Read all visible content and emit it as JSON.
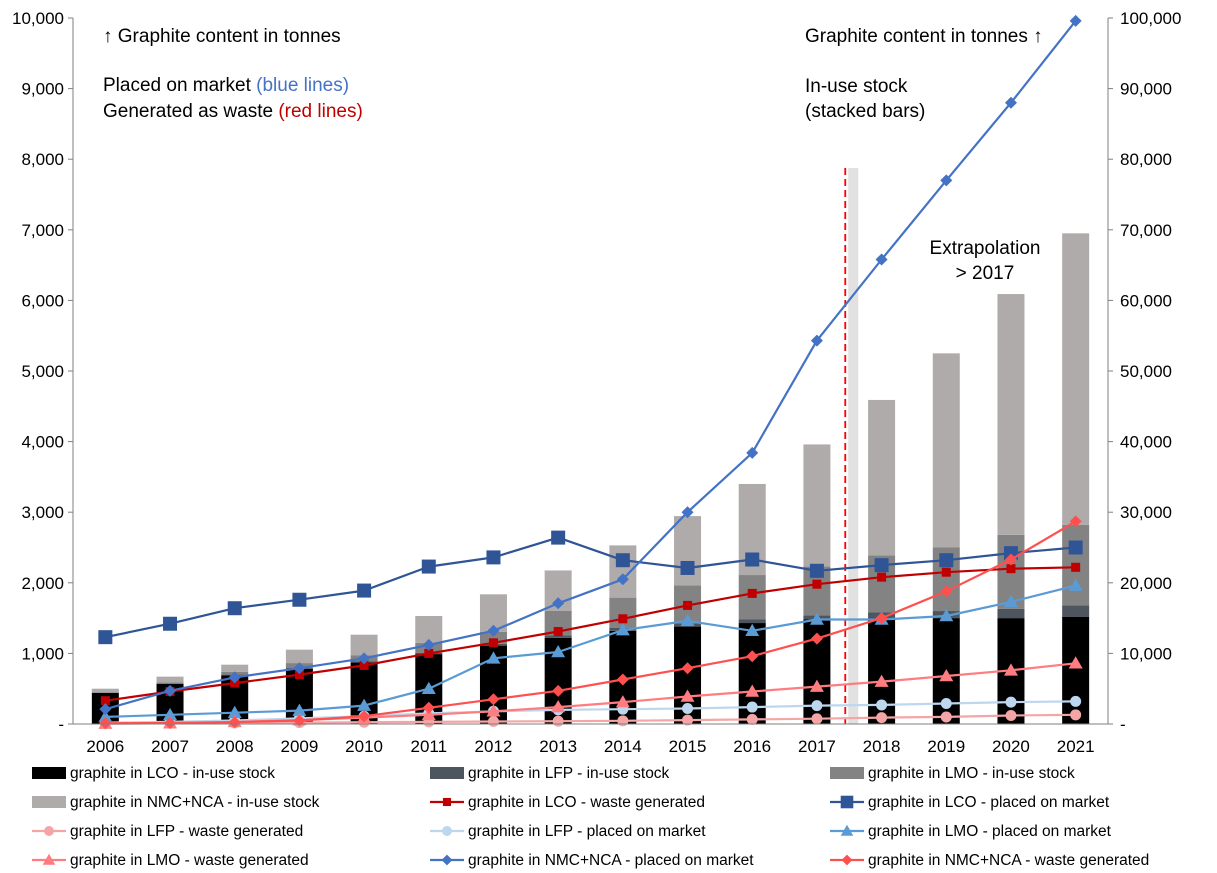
{
  "chart_data": {
    "type": "bar",
    "categories": [
      "2006",
      "2007",
      "2008",
      "2009",
      "2010",
      "2011",
      "2012",
      "2013",
      "2014",
      "2015",
      "2016",
      "2017",
      "2018",
      "2019",
      "2020",
      "2021"
    ],
    "left_axis": {
      "ylim": [
        0,
        10000
      ],
      "ticks": [
        0,
        1000,
        2000,
        3000,
        4000,
        5000,
        6000,
        7000,
        8000,
        9000,
        10000
      ],
      "tick_labels": [
        "-",
        "1,000",
        "2,000",
        "3,000",
        "4,000",
        "5,000",
        "6,000",
        "7,000",
        "8,000",
        "9,000",
        "10,000"
      ]
    },
    "right_axis": {
      "ylim": [
        0,
        100000
      ],
      "ticks": [
        0,
        10000,
        20000,
        30000,
        40000,
        50000,
        60000,
        70000,
        80000,
        90000,
        100000
      ],
      "tick_labels": [
        "-",
        "10,000",
        "20,000",
        "30,000",
        "40,000",
        "50,000",
        "60,000",
        "70,000",
        "80,000",
        "90,000",
        "100,000"
      ]
    },
    "grid": false,
    "legend_position": "bottom",
    "annotations": {
      "left_unit": "↑ Graphite content in tonnes",
      "placed_prefix": "Placed on market ",
      "placed_suffix": "(blue lines)",
      "waste_prefix": "Generated as waste ",
      "waste_suffix": "(red lines)",
      "right_unit": "Graphite content in tonnes ↑",
      "stock_line1": "In-use stock",
      "stock_line2": "(stacked bars)",
      "extrap_line1": "Extrapolation",
      "extrap_line2": "> 2017",
      "extrapolation_after": "2017"
    },
    "stacked_bars": [
      {
        "name": "graphite in LCO - in-use stock",
        "color": "#000000",
        "values": [
          4400,
          5700,
          6900,
          7800,
          8700,
          9900,
          11100,
          12200,
          13200,
          13800,
          14300,
          14800,
          15000,
          15000,
          15000,
          15200
        ]
      },
      {
        "name": "graphite in LFP - in-use stock",
        "color": "#4d555f",
        "values": [
          50,
          60,
          100,
          130,
          150,
          200,
          270,
          350,
          400,
          450,
          500,
          600,
          800,
          1000,
          1300,
          1600
        ]
      },
      {
        "name": "graphite in LMO - in-use stock",
        "color": "#838383",
        "values": [
          50,
          150,
          400,
          700,
          900,
          1400,
          1700,
          3500,
          4300,
          5400,
          6300,
          6900,
          8100,
          9000,
          10500,
          11400
        ]
      },
      {
        "name": "graphite in NMC+NCA - in-use stock",
        "color": "#b0abab",
        "values": [
          500,
          800,
          1000,
          1900,
          2900,
          3800,
          5300,
          5700,
          7400,
          9800,
          12900,
          17300,
          22000,
          27500,
          34100,
          41300
        ]
      }
    ],
    "lines": [
      {
        "name": "graphite in LCO - waste generated",
        "color": "#c00000",
        "marker": "square-small",
        "axis": "left",
        "values": [
          330,
          460,
          580,
          700,
          830,
          1000,
          1150,
          1310,
          1490,
          1680,
          1850,
          1980,
          2080,
          2150,
          2200,
          2220
        ]
      },
      {
        "name": "graphite in LCO - placed on market",
        "color": "#2f5597",
        "marker": "square",
        "axis": "left",
        "values": [
          1230,
          1420,
          1640,
          1760,
          1890,
          2230,
          2360,
          2640,
          2320,
          2210,
          2330,
          2170,
          2250,
          2320,
          2420,
          2500
        ]
      },
      {
        "name": "graphite in LFP - waste generated",
        "color": "#f4a6a6",
        "marker": "circle",
        "axis": "left",
        "values": [
          5,
          10,
          15,
          20,
          25,
          30,
          35,
          40,
          45,
          55,
          65,
          75,
          90,
          100,
          120,
          130
        ]
      },
      {
        "name": "graphite in LFP - placed on market",
        "color": "#bdd7ee",
        "marker": "circle",
        "axis": "left",
        "values": [
          20,
          30,
          50,
          80,
          110,
          150,
          180,
          200,
          210,
          220,
          240,
          260,
          270,
          290,
          310,
          320
        ]
      },
      {
        "name": "graphite in LMO - placed on market",
        "color": "#5b9bd5",
        "marker": "triangle",
        "axis": "left",
        "values": [
          100,
          130,
          160,
          190,
          260,
          500,
          930,
          1020,
          1330,
          1460,
          1320,
          1480,
          1480,
          1530,
          1730,
          1960
        ]
      },
      {
        "name": "graphite in LMO - waste generated",
        "color": "#ff7c80",
        "marker": "triangle",
        "axis": "left",
        "values": [
          5,
          10,
          30,
          55,
          90,
          130,
          180,
          240,
          310,
          390,
          460,
          530,
          600,
          680,
          760,
          860
        ]
      },
      {
        "name": "graphite in NMC+NCA - placed on market",
        "color": "#4472c4",
        "marker": "diamond",
        "axis": "left",
        "values": [
          210,
          470,
          660,
          790,
          930,
          1120,
          1320,
          1710,
          2050,
          3000,
          3840,
          5430,
          6580,
          7700,
          8800,
          9960
        ]
      },
      {
        "name": "graphite in NMC+NCA - waste generated",
        "color": "#ff5050",
        "marker": "diamond",
        "axis": "left",
        "values": [
          10,
          15,
          25,
          50,
          110,
          230,
          350,
          470,
          630,
          790,
          960,
          1210,
          1500,
          1880,
          2330,
          2870
        ]
      }
    ],
    "legend_order": [
      "graphite in LCO - in-use stock",
      "graphite in LFP - in-use stock",
      "graphite in LMO - in-use stock",
      "graphite in NMC+NCA - in-use stock",
      "graphite in LCO - waste generated",
      "graphite in LCO - placed on market",
      "graphite in LFP - waste generated",
      "graphite in LFP - placed on market",
      "graphite in LMO - placed on market",
      "graphite in LMO - waste generated",
      "graphite in NMC+NCA - placed on market",
      "graphite in NMC+NCA - waste generated"
    ],
    "colors": {
      "placed_text": "#4472c4",
      "waste_text": "#c00000",
      "stock_note": "#808080",
      "extrap_text": "#ff0000",
      "extrap_line": "#ff0000"
    }
  }
}
